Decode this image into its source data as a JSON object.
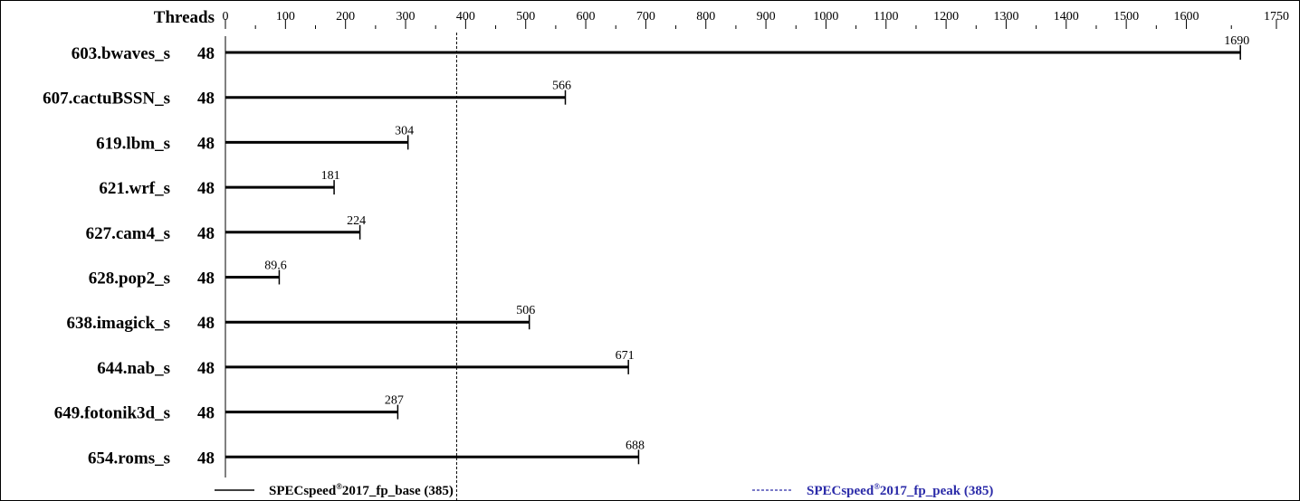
{
  "chart_data": {
    "type": "bar",
    "orientation": "horizontal",
    "header": "Threads",
    "x_ticks": [
      0,
      100,
      200,
      300,
      400,
      500,
      600,
      700,
      800,
      900,
      1000,
      1100,
      1200,
      1300,
      1400,
      1500,
      1600,
      1750
    ],
    "xlim": [
      0,
      1750
    ],
    "categories": [
      "603.bwaves_s",
      "607.cactuBSSN_s",
      "619.lbm_s",
      "621.wrf_s",
      "627.cam4_s",
      "628.pop2_s",
      "638.imagick_s",
      "644.nab_s",
      "649.fotonik3d_s",
      "654.roms_s"
    ],
    "threads": [
      "48",
      "48",
      "48",
      "48",
      "48",
      "48",
      "48",
      "48",
      "48",
      "48"
    ],
    "values": [
      1690,
      566,
      304,
      181,
      224,
      89.6,
      506,
      671,
      287,
      688
    ],
    "value_labels": [
      "1690",
      "566",
      "304",
      "181",
      "224",
      "89.6",
      "506",
      "671",
      "287",
      "688"
    ],
    "reference_line": 385,
    "legend": {
      "base": {
        "prefix": "SPECspeed",
        "sup": "®",
        "suffix": "2017_fp_base (385)",
        "color": "#000000"
      },
      "peak": {
        "prefix": "SPECspeed",
        "sup": "®",
        "suffix": "2017_fp_peak (385)",
        "color": "#2a2aa8"
      }
    }
  }
}
